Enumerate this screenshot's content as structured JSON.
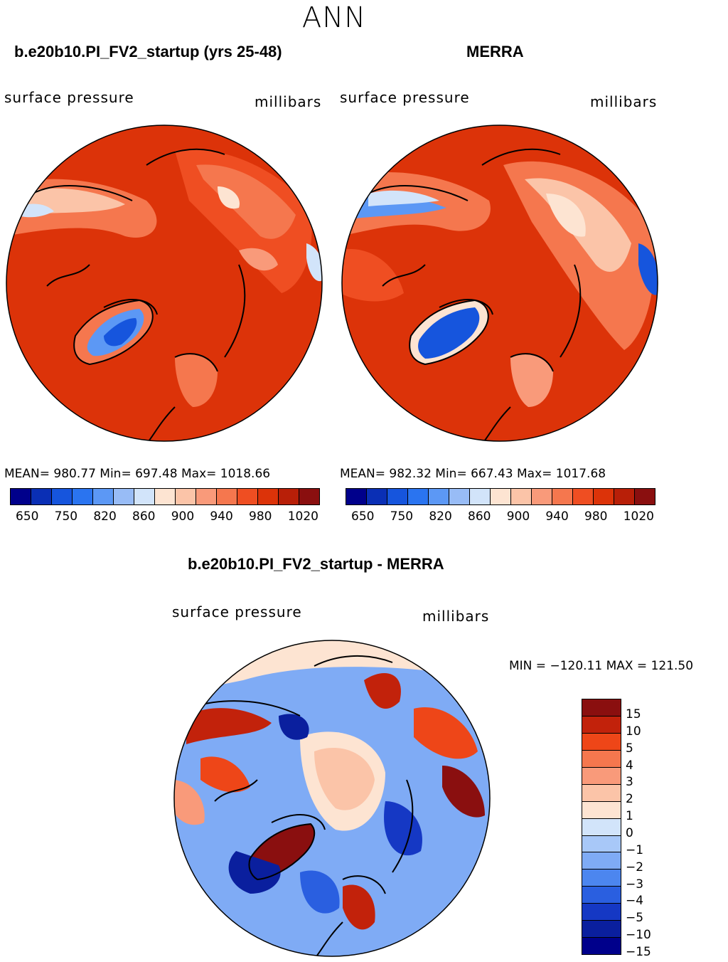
{
  "season": "ANN",
  "panel_left": {
    "title": "b.e20b10.PI_FV2_startup (yrs 25-48)",
    "field": "surface pressure",
    "units": "millibars",
    "stats": "MEAN= 980.77   Min= 697.48   Max= 1018.66"
  },
  "panel_right": {
    "title": "MERRA",
    "field": "surface pressure",
    "units": "millibars",
    "stats": "MEAN= 982.32   Min= 667.43   Max= 1017.68"
  },
  "panel_diff": {
    "title": "b.e20b10.PI_FV2_startup - MERRA",
    "field": "surface pressure",
    "units": "millibars",
    "stats": "MIN = −120.11  MAX = 121.50"
  },
  "colorbar_abs": {
    "colors": [
      "#00008b",
      "#0a2fb5",
      "#1655dd",
      "#2a74f0",
      "#5c98f5",
      "#98bcf6",
      "#d2e4fa",
      "#fde4d2",
      "#fbc4a8",
      "#f99a7a",
      "#f5774e",
      "#ef4e22",
      "#dc3309",
      "#b81f08",
      "#8a0f0f"
    ],
    "tick_labels": [
      "650",
      "750",
      "820",
      "860",
      "900",
      "940",
      "980",
      "1020"
    ]
  },
  "colorbar_diff": {
    "colors": [
      "#8a0f0f",
      "#c2220b",
      "#ee4618",
      "#f5774e",
      "#f99a7a",
      "#fbc4a8",
      "#fde4d2",
      "#d2e4fa",
      "#a8c8f8",
      "#7fabf5",
      "#4c86ef",
      "#2a5fe0",
      "#1538c4",
      "#0a1f9e",
      "#00008b"
    ],
    "tick_labels": [
      "15",
      "10",
      "5",
      "4",
      "3",
      "2",
      "1",
      "0",
      "−1",
      "−2",
      "−3",
      "−4",
      "−5",
      "−10",
      "−15"
    ]
  }
}
